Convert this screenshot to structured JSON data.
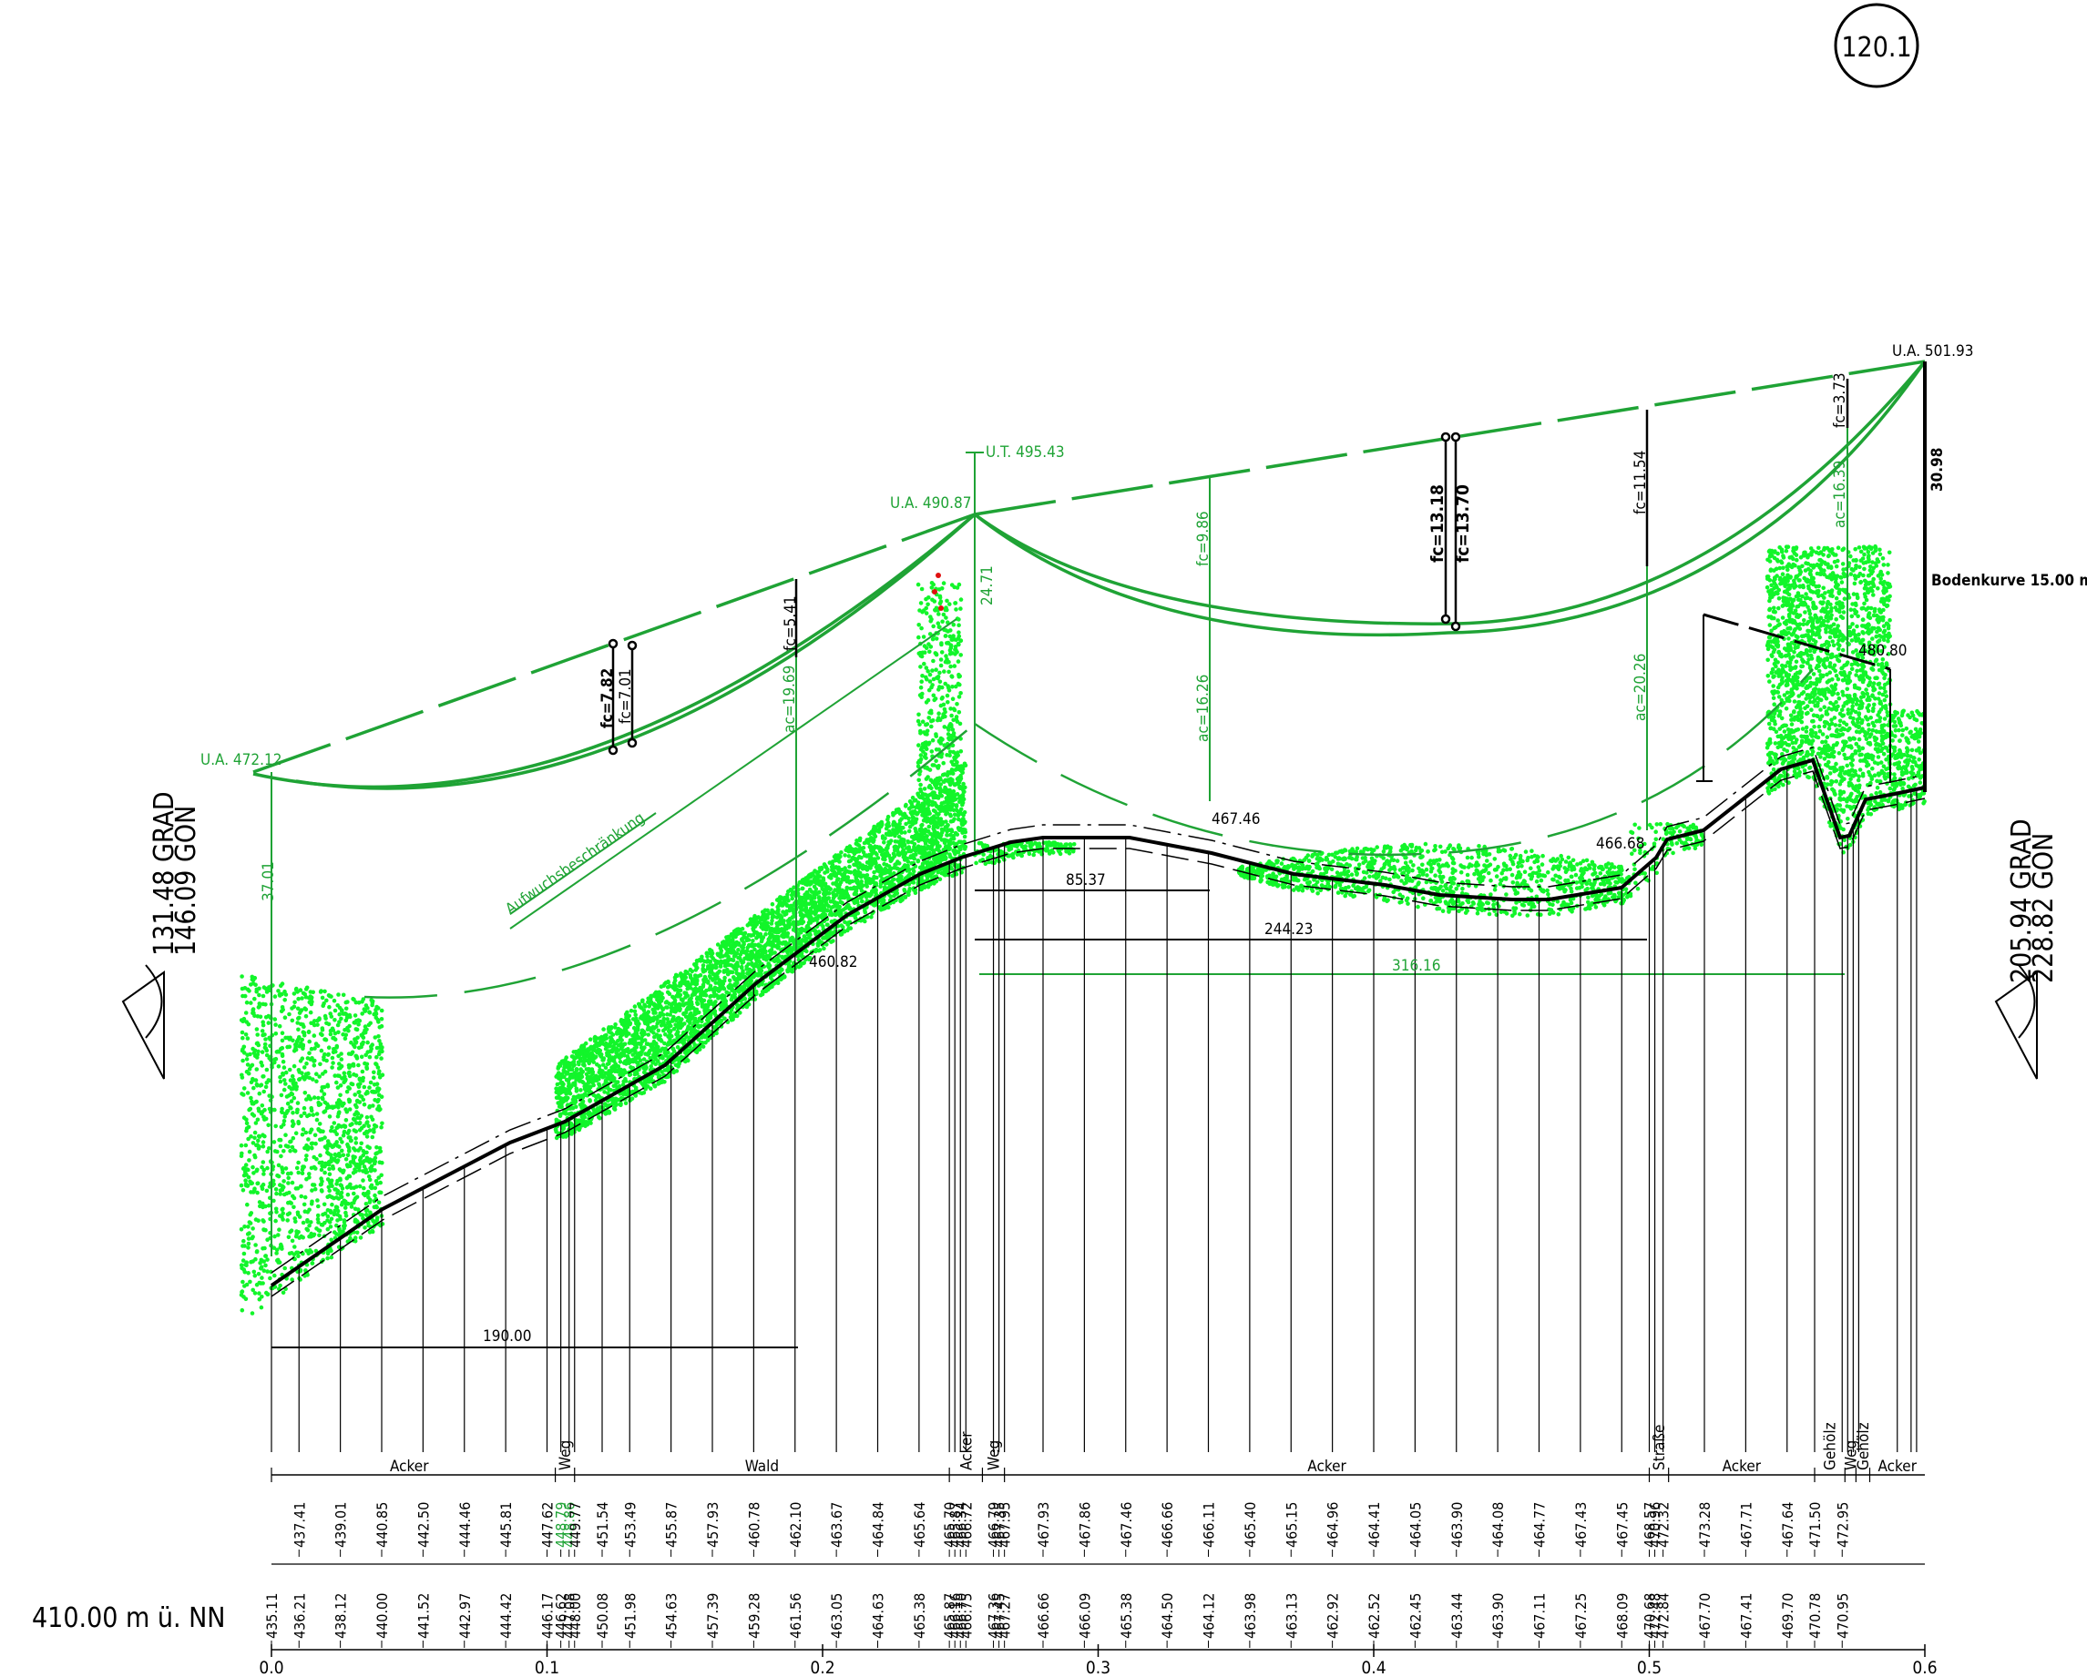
{
  "sheet_number": "120.1",
  "datum_label": "410.00 m ü. NN",
  "left_angle": {
    "grad": "131.48 GRAD",
    "gon": "146.09 GON"
  },
  "right_angle": {
    "grad": "205.94 GRAD",
    "gon": "228.82 GON"
  },
  "towers": [
    {
      "label": "U.A. 472.12"
    },
    {
      "label": "U.A. 490.87",
      "top_label": "U.T. 495.43"
    },
    {
      "label": "U.A. 501.93"
    }
  ],
  "bodenkurve_label": "Bodenkurve 15.00 m (",
  "aufwuchs_label": "Aufwuchsbeschränkung",
  "dims": {
    "tower1_height": "37.01",
    "tower2_height": "24.71",
    "tower3_height": "30.98",
    "d190": "190.00",
    "d85": "85.37",
    "d244": "244.23",
    "d316": "316.16"
  },
  "sag_labels": {
    "fc782": "fc=7.82",
    "fc701": "fc=7.01",
    "fc541": "fc=5.41",
    "ac1969": "ac=19.69",
    "fc986": "fc=9.86",
    "ac1626": "ac=16.26",
    "fc1318": "fc=13.18",
    "fc1370": "fc=13.70",
    "fc1154": "fc=11.54",
    "ac2026": "ac=20.26",
    "fc373": "fc=3.73",
    "ac1639": "ac=16.39"
  },
  "point_labels": {
    "p46082": "460.82",
    "p46746": "467.46",
    "p46668": "466.68",
    "p48080": "480.80"
  },
  "land_use": [
    "Acker",
    "Weg",
    "Wald",
    "Acker",
    "Weg",
    "Acker",
    "Straße",
    "Acker",
    "Gehölz",
    "Weg",
    "Gehölz",
    "Acker"
  ],
  "stations": [
    0.0,
    0.01,
    0.025,
    0.04,
    0.055,
    0.07,
    0.085,
    0.1,
    0.105,
    0.108,
    0.11,
    0.12,
    0.13,
    0.145,
    0.16,
    0.175,
    0.19,
    0.205,
    0.22,
    0.235,
    0.246,
    0.248,
    0.25,
    0.252,
    0.262,
    0.264,
    0.266,
    0.28,
    0.295,
    0.31,
    0.325,
    0.34,
    0.355,
    0.37,
    0.385,
    0.4,
    0.415,
    0.43,
    0.445,
    0.46,
    0.475,
    0.49,
    0.5,
    0.502,
    0.505,
    0.52,
    0.535,
    0.55,
    0.56,
    0.57,
    0.572,
    0.574,
    0.576,
    0.59,
    0.595,
    0.597
  ],
  "row_upper": [
    "",
    "437.41",
    "439.01",
    "440.85",
    "442.50",
    "444.46",
    "445.81",
    "447.62",
    "448.79",
    "448.86",
    "449.77",
    "451.54",
    "453.49",
    "455.87",
    "457.93",
    "460.78",
    "462.10",
    "463.67",
    "464.84",
    "465.64",
    "465.70",
    "465.87",
    "466.34",
    "466.72",
    "466.79",
    "467.35",
    "467.95",
    "467.93",
    "467.86",
    "467.46",
    "466.66",
    "466.11",
    "465.40",
    "465.15",
    "464.96",
    "464.41",
    "464.05",
    "463.90",
    "464.08",
    "464.77",
    "467.43",
    "467.45",
    "468.57",
    "470.96",
    "472.32",
    "473.28",
    "467.71",
    "467.64",
    "471.50",
    "472.95"
  ],
  "row_lower": [
    "435.11",
    "436.21",
    "438.12",
    "440.00",
    "441.52",
    "442.97",
    "444.42",
    "446.17",
    "446.62",
    "447.08",
    "448.00",
    "450.08",
    "451.98",
    "454.63",
    "457.39",
    "459.28",
    "461.56",
    "463.05",
    "464.63",
    "465.38",
    "465.87",
    "466.16",
    "466.70",
    "466.75",
    "467.36",
    "467.45",
    "467.27",
    "466.66",
    "466.09",
    "465.38",
    "464.50",
    "464.12",
    "463.98",
    "463.13",
    "462.92",
    "462.52",
    "462.45",
    "463.44",
    "463.90",
    "467.11",
    "467.25",
    "468.09",
    "470.68",
    "472.48",
    "472.84",
    "467.70",
    "467.41",
    "469.70",
    "470.78",
    "470.95"
  ],
  "km_ticks": [
    "0.0",
    "0.1",
    "0.2",
    "0.3",
    "0.4",
    "0.5",
    "0.6"
  ],
  "colors": {
    "conductor": "#1fa335",
    "vegetation": "#12f52a",
    "ground": "#000000",
    "vegetation_alert": "#e01010"
  }
}
